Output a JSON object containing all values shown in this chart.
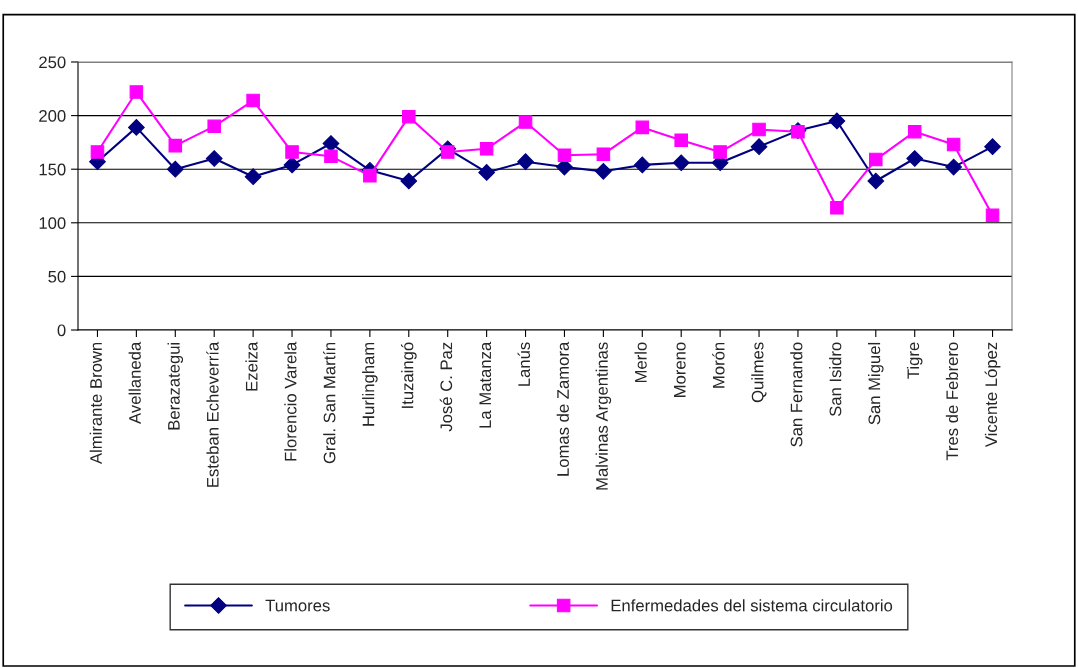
{
  "chart_data": {
    "type": "line",
    "categories": [
      "Almirante Brown",
      "Avellaneda",
      "Berazategui",
      "Esteban Echeverría",
      "Ezeiza",
      "Florencio Varela",
      "Gral. San Martín",
      "Hurlingham",
      "Ituzaingó",
      "José C. Paz",
      "La Matanza",
      "Lanús",
      "Lomas de Zamora",
      "Malvinas Argentinas",
      "Merlo",
      "Moreno",
      "Morón",
      "Quilmes",
      "San Fernando",
      "San Isidro",
      "San Miguel",
      "Tigre",
      "Tres de Febrero",
      "Vicente López"
    ],
    "series": [
      {
        "name": "Tumores",
        "color": "#000080",
        "marker": "diamond",
        "values": [
          157,
          189,
          150,
          160,
          143,
          154,
          174,
          149,
          139,
          169,
          147,
          157,
          152,
          148,
          154,
          156,
          156,
          171,
          186,
          195,
          139,
          160,
          152,
          171
        ]
      },
      {
        "name": "Enfermedades del sistema circulatorio",
        "color": "#ff00ff",
        "marker": "square",
        "values": [
          166,
          222,
          172,
          190,
          214,
          166,
          162,
          144,
          199,
          166,
          169,
          194,
          163,
          164,
          189,
          177,
          166,
          187,
          185,
          114,
          159,
          185,
          173,
          107
        ]
      }
    ],
    "ylim": [
      0,
      250
    ],
    "yticks": [
      0,
      50,
      100,
      150,
      200,
      250
    ],
    "grid": "y",
    "legend": "bottom",
    "line_style": "solid"
  }
}
